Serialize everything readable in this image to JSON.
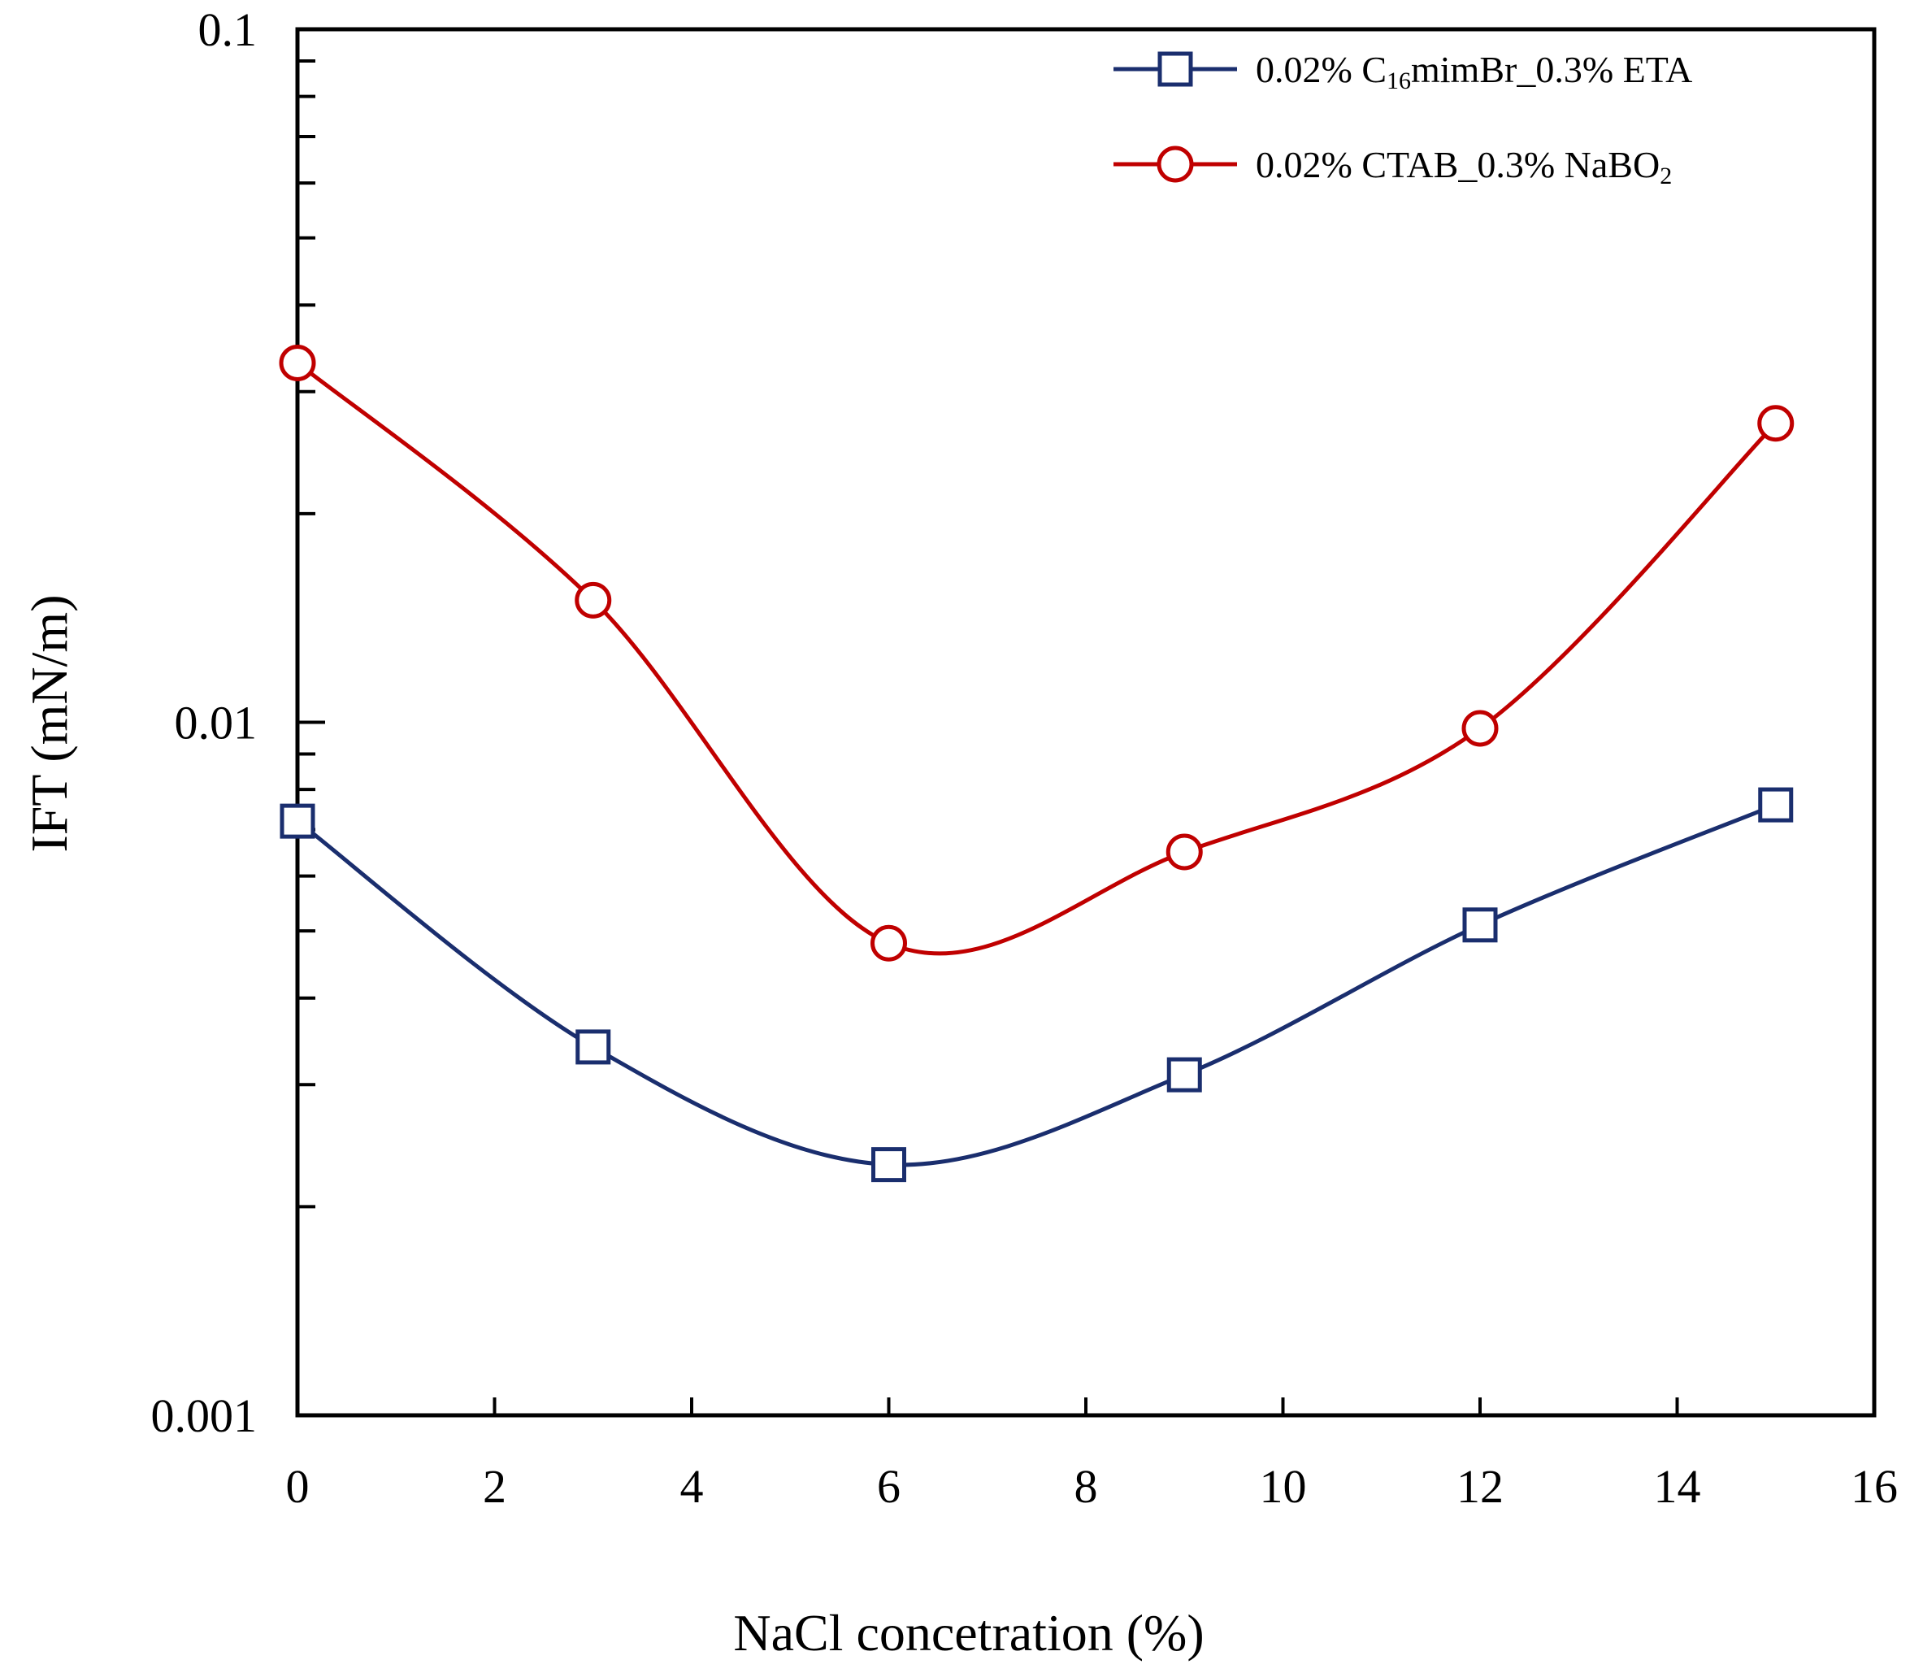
{
  "chart_data": {
    "type": "line",
    "title": "",
    "xlabel": "NaCl concetration (%)",
    "ylabel": "IFT (mN/m)",
    "xlim": [
      0,
      16
    ],
    "ylim": [
      0.001,
      0.1
    ],
    "yscale": "log",
    "grid": false,
    "legend_position": "top-right",
    "x_ticks": [
      0,
      2,
      4,
      6,
      8,
      10,
      12,
      14,
      16
    ],
    "x_tick_labels": [
      "0",
      "2",
      "4",
      "6",
      "8",
      "10",
      "12",
      "14",
      "16"
    ],
    "y_major_ticks": [
      0.001,
      0.01,
      0.1
    ],
    "y_tick_labels": [
      "0.001",
      "0.01",
      "0.1"
    ],
    "series": [
      {
        "name": "0.02% C16mimBr_0.3%  ETA",
        "legend_main": "0.02% C",
        "legend_sub": "16",
        "legend_tail": "mimBr_0.3%  ETA",
        "marker": "square",
        "color": "#1a2e6e",
        "x": [
          0,
          3,
          6,
          9,
          12,
          15
        ],
        "values": [
          0.0072,
          0.0034,
          0.0023,
          0.0031,
          0.0051,
          0.0076
        ]
      },
      {
        "name": "0.02% CTAB_0.3% NaBO2",
        "legend_main": "0.02% CTAB_0.3% NaBO",
        "legend_sub": "2",
        "legend_tail": "",
        "marker": "circle",
        "color": "#c00000",
        "x": [
          0,
          3,
          6,
          9,
          12,
          15
        ],
        "values": [
          0.033,
          0.015,
          0.0048,
          0.0065,
          0.0098,
          0.027
        ]
      }
    ]
  }
}
